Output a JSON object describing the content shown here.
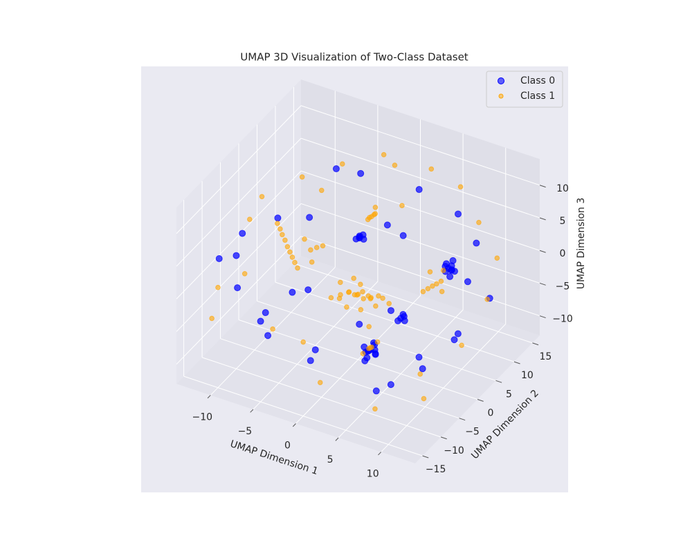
{
  "chart_data": {
    "type": "scatter3d",
    "title": "UMAP 3D Visualization of Two-Class Dataset",
    "xlabel": "UMAP Dimension 1",
    "ylabel": "UMAP Dimension 2",
    "zlabel": "UMAP Dimension 3",
    "xlim": [
      -14,
      14
    ],
    "ylim": [
      -17,
      17
    ],
    "zlim": [
      -13,
      14
    ],
    "xticks": [
      {
        "value": -10,
        "label": "−10"
      },
      {
        "value": -5,
        "label": "−5"
      },
      0,
      5,
      10
    ],
    "yticks": [
      {
        "value": -15,
        "label": "−15"
      },
      {
        "value": -10,
        "label": "−10"
      },
      {
        "value": -5,
        "label": "−5"
      },
      0,
      5,
      10,
      15
    ],
    "zticks": [
      {
        "value": -10,
        "label": "−10"
      },
      {
        "value": -5,
        "label": "−5"
      },
      0,
      5,
      10
    ],
    "grid": true,
    "legend": "upper right",
    "series": [
      {
        "name": "Class 0",
        "color": "blue",
        "x": [
          3,
          3.3,
          2.8,
          3.5,
          2.6,
          3.1,
          3.8,
          2.4,
          3.2,
          4,
          2.9,
          3.6,
          8,
          8.3,
          7.8,
          8.5,
          7.6,
          8.1,
          8.7,
          7.9,
          8.4,
          8.2,
          -2,
          -1.7,
          -2.3,
          -1.8,
          -2.2,
          -1.5,
          5,
          5.3,
          4.8,
          5.5,
          5.1,
          -12,
          -11,
          -9,
          -13,
          -6,
          -4,
          2,
          7,
          10,
          12,
          13,
          11,
          9,
          1,
          -5,
          -8,
          -10,
          -3,
          6,
          10,
          -7,
          0,
          4,
          -2,
          6,
          12,
          -12,
          1,
          8,
          -6
        ],
        "y": [
          -4,
          -4.2,
          -3.8,
          -3.6,
          -4.4,
          -4.8,
          -4.1,
          -3.5,
          -3.2,
          -4.6,
          -4.9,
          -3.9,
          6,
          6.2,
          5.7,
          5.8,
          6.4,
          6.6,
          6.1,
          5.4,
          5.5,
          6.8,
          5,
          5.3,
          4.8,
          4.6,
          5.5,
          5,
          0,
          0.2,
          -0.3,
          -0.1,
          0.4,
          -10,
          -6,
          -12,
          -3,
          8,
          10,
          12,
          11,
          9,
          2,
          -4,
          -8,
          -12,
          -14,
          -13,
          -8,
          -2,
          -6,
          -9,
          4,
          3,
          8,
          3,
          -9,
          -5,
          8,
          6,
          -2,
          -2,
          -4
        ],
        "z": [
          -8,
          -7.6,
          -8.3,
          -7.9,
          -7.4,
          -8.6,
          -8.2,
          -8.8,
          -7.2,
          -7.7,
          -9.1,
          -6.9,
          1,
          1.4,
          0.6,
          1.1,
          1.3,
          0.4,
          0.8,
          1.6,
          0.2,
          1.8,
          2,
          2.3,
          1.7,
          2.5,
          1.5,
          1.9,
          -4.5,
          -4.2,
          -4.8,
          -4.6,
          -4.1,
          3,
          5,
          1,
          -1,
          9,
          8,
          7,
          6,
          4,
          3,
          -2,
          -5,
          -6,
          -3,
          -4,
          -6,
          -9,
          -11,
          -10,
          -7,
          4,
          3,
          6,
          2,
          0,
          -3,
          0,
          -6,
          -8,
          -3
        ]
      },
      {
        "name": "Class 1",
        "color": "orange",
        "x": [
          0,
          0.4,
          -0.5,
          0.8,
          -0.9,
          1.2,
          -1.4,
          0.3,
          -0.2,
          1.6,
          -1.8,
          2,
          -2.2,
          0.6,
          -0.7,
          2.4,
          -2.6,
          1,
          -1.2,
          2.8,
          -3,
          3.2,
          -8,
          -8.5,
          -7.5,
          -9,
          -7,
          -9.5,
          -6.5,
          -10,
          -6,
          -5.5,
          -5,
          -10.5,
          -1,
          -0.7,
          -1.3,
          -0.5,
          -1.5,
          -0.9,
          7,
          7.4,
          6.6,
          7.8,
          6.2,
          8.2,
          4,
          4.3,
          3.7,
          4.6,
          3.4,
          -13,
          -12,
          -10,
          -7,
          -3,
          3,
          6,
          9,
          12,
          13,
          13,
          12,
          8,
          2,
          -4,
          -9,
          -11,
          -6,
          0,
          5,
          -3,
          9,
          -8,
          10,
          -13,
          3,
          -5,
          6
        ],
        "y": [
          0,
          0.3,
          0.2,
          -0.4,
          -0.5,
          0.6,
          0.8,
          -1,
          1.1,
          -0.2,
          -0.9,
          0.9,
          0.3,
          1.4,
          -1.5,
          -0.8,
          1.2,
          -1.6,
          1.6,
          0.2,
          -0.4,
          1,
          0,
          0.5,
          -0.5,
          1,
          -1,
          1.4,
          -1.4,
          2,
          1,
          1.5,
          2,
          2.4,
          6,
          6.3,
          5.7,
          5.5,
          6.6,
          6.8,
          4,
          4.2,
          3.7,
          4.5,
          3.3,
          3.8,
          -6,
          -6.3,
          -5.7,
          -5.4,
          -6.6,
          -8,
          -12,
          8,
          12,
          14,
          13,
          14,
          12,
          10,
          5,
          -2,
          -10,
          -14,
          -15,
          -14,
          -10,
          -4,
          4,
          10,
          8,
          -8,
          -4,
          6,
          0,
          4,
          5,
          -3,
          -11
        ],
        "z": [
          -3,
          -2.6,
          -3.4,
          -3.1,
          -2.8,
          -3.5,
          -3.7,
          -2.4,
          -2.2,
          -2.7,
          -3.9,
          -2.9,
          -4.2,
          -3.8,
          -4.4,
          -3.3,
          -3,
          -4,
          -2,
          -2.5,
          -4.6,
          -3.6,
          0,
          0.3,
          -0.3,
          0.8,
          -0.6,
          1.2,
          -1,
          1.5,
          0.6,
          0.9,
          1.1,
          1.9,
          5,
          5.4,
          4.6,
          5.8,
          4.3,
          6,
          -1,
          -0.6,
          -1.4,
          -0.2,
          -1.8,
          -1.2,
          -6,
          -5.6,
          -6.4,
          -5.2,
          -6.8,
          -3,
          -5,
          6,
          7,
          9,
          10,
          8,
          5,
          2,
          -1,
          -4,
          -8,
          -9,
          -7,
          -2,
          2,
          6,
          8,
          11,
          -2,
          -7,
          -9,
          -5,
          5,
          4,
          9,
          5,
          1
        ]
      }
    ]
  }
}
